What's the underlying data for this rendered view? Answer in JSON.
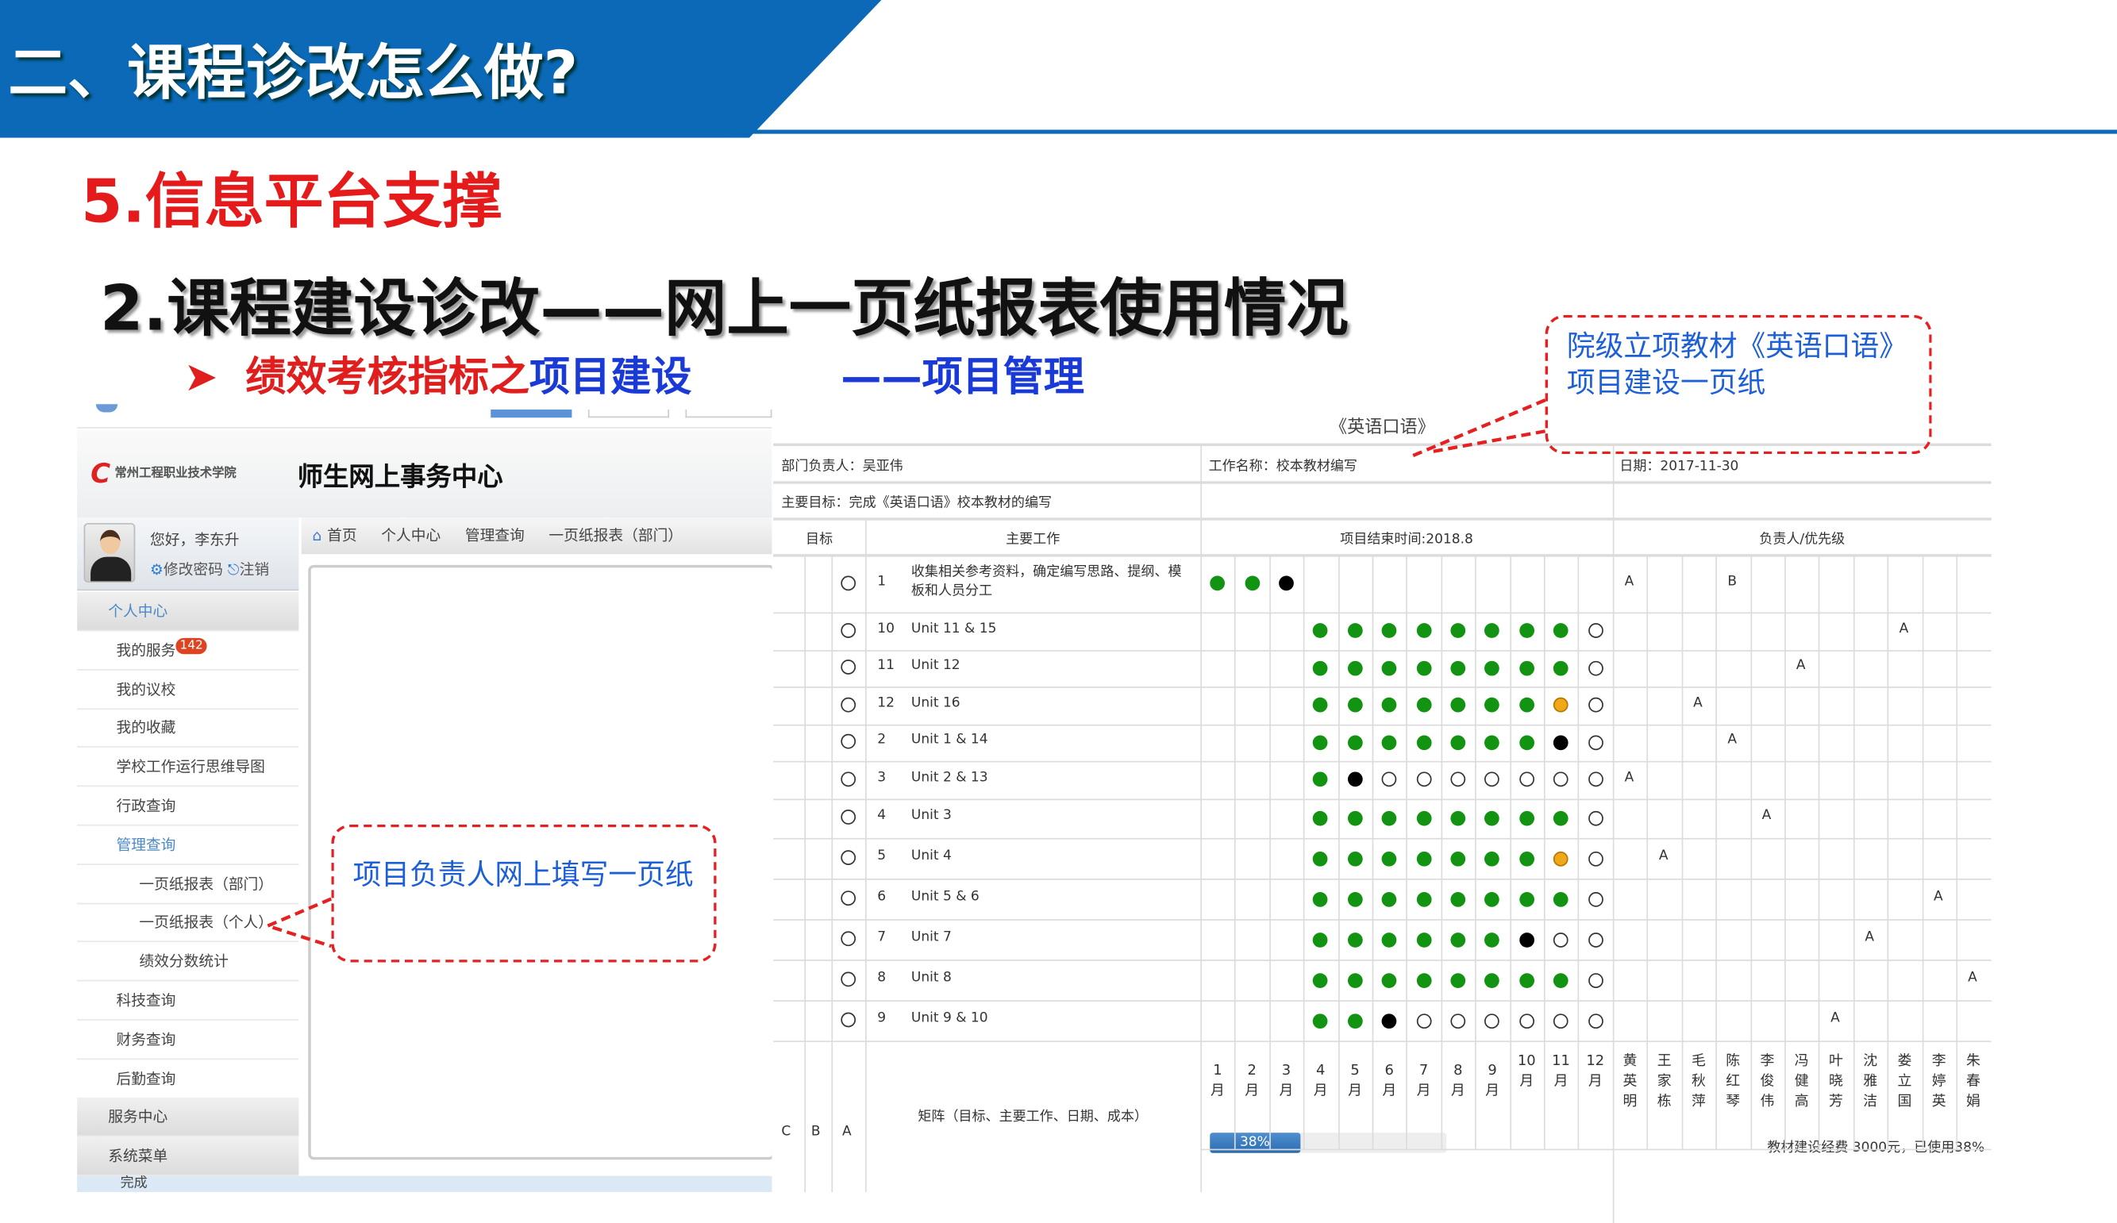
{
  "slide": {
    "banner_title": "二、课程诊改怎么做?",
    "section": "5.信息平台支撑",
    "heading": "2.课程建设诊改——网上一页纸报表使用情况",
    "sub_bullet": "➤",
    "sub_red": "绩效考核指标之",
    "sub_blue": "项目建设",
    "sub_right": "——项目管理",
    "callout_top": "院级立项教材《英语口语》项目建设一页纸",
    "callout_left": "项目负责人网上填写一页纸"
  },
  "portal": {
    "logo_text": "常州工程职业技术学院",
    "system_name": "师生网上事务中心",
    "greeting": "您好，李东升",
    "change_password": "修改密码",
    "logout": "注销",
    "breadcrumb": [
      "首页",
      "个人中心",
      "管理查询",
      "一页纸报表（部门）"
    ],
    "menu": [
      {
        "label": "个人中心",
        "type": "hdr",
        "active": true
      },
      {
        "label": "我的服务",
        "badge": "142"
      },
      {
        "label": "我的议校"
      },
      {
        "label": "我的收藏"
      },
      {
        "label": "学校工作运行思维导图"
      },
      {
        "label": "行政查询"
      },
      {
        "label": "管理查询",
        "active": true
      },
      {
        "label": "一页纸报表（部门）",
        "type": "sub"
      },
      {
        "label": "一页纸报表（个人）",
        "type": "sub"
      },
      {
        "label": "绩效分数统计",
        "type": "sub"
      },
      {
        "label": "科技查询"
      },
      {
        "label": "财务查询"
      },
      {
        "label": "后勤查询"
      },
      {
        "label": "服务中心",
        "type": "hdr"
      },
      {
        "label": "系统菜单",
        "type": "hdr"
      }
    ],
    "status": "完成"
  },
  "report": {
    "title": "《英语口语》",
    "dept_head": "部门负责人：吴亚伟",
    "work_name": "工作名称：校本教材编写",
    "date": "日期：2017-11-30",
    "main_goal": "主要目标：完成《英语口语》校本教材的编写",
    "col_target": "目标",
    "col_work": "主要工作",
    "col_end": "项目结束时间:2018.8",
    "col_owner": "负责人/优先级",
    "rows": [
      {
        "no": "1",
        "work": "收集相关参考资料，确定编写思路、提纲、模板和人员分工",
        "months": [
          "green",
          "green",
          "black",
          "",
          "",
          "",
          "",
          "",
          "",
          "",
          "",
          ""
        ],
        "owners": [
          "A",
          "",
          "",
          "B",
          "",
          "",
          "",
          "",
          "",
          "",
          ""
        ]
      },
      {
        "no": "10",
        "work": "Unit 11 & 15",
        "months": [
          "",
          "",
          "",
          "green",
          "green",
          "green",
          "green",
          "green",
          "green",
          "green",
          "green",
          "open"
        ],
        "owners": [
          "",
          "",
          "",
          "",
          "",
          "",
          "",
          "",
          "A",
          "",
          ""
        ]
      },
      {
        "no": "11",
        "work": "Unit 12",
        "months": [
          "",
          "",
          "",
          "green",
          "green",
          "green",
          "green",
          "green",
          "green",
          "green",
          "green",
          "open"
        ],
        "owners": [
          "",
          "",
          "",
          "",
          "",
          "A",
          "",
          "",
          "",
          "",
          ""
        ]
      },
      {
        "no": "12",
        "work": "Unit 16",
        "months": [
          "",
          "",
          "",
          "green",
          "green",
          "green",
          "green",
          "green",
          "green",
          "green",
          "orange",
          "open"
        ],
        "owners": [
          "",
          "",
          "A",
          "",
          "",
          "",
          "",
          "",
          "",
          "",
          ""
        ]
      },
      {
        "no": "2",
        "work": "Unit 1 & 14",
        "months": [
          "",
          "",
          "",
          "green",
          "green",
          "green",
          "green",
          "green",
          "green",
          "green",
          "black",
          "open"
        ],
        "owners": [
          "",
          "",
          "",
          "A",
          "",
          "",
          "",
          "",
          "",
          "",
          ""
        ]
      },
      {
        "no": "3",
        "work": "Unit 2 & 13",
        "months": [
          "",
          "",
          "",
          "green",
          "black",
          "open",
          "open",
          "open",
          "open",
          "open",
          "open",
          "open"
        ],
        "owners": [
          "A",
          "",
          "",
          "",
          "",
          "",
          "",
          "",
          "",
          "",
          ""
        ]
      },
      {
        "no": "4",
        "work": "Unit 3",
        "months": [
          "",
          "",
          "",
          "green",
          "green",
          "green",
          "green",
          "green",
          "green",
          "green",
          "green",
          "open"
        ],
        "owners": [
          "",
          "",
          "",
          "",
          "A",
          "",
          "",
          "",
          "",
          "",
          ""
        ]
      },
      {
        "no": "5",
        "work": "Unit 4",
        "months": [
          "",
          "",
          "",
          "green",
          "green",
          "green",
          "green",
          "green",
          "green",
          "green",
          "orange",
          "open"
        ],
        "owners": [
          "",
          "A",
          "",
          "",
          "",
          "",
          "",
          "",
          "",
          "",
          ""
        ]
      },
      {
        "no": "6",
        "work": "Unit 5 & 6",
        "months": [
          "",
          "",
          "",
          "green",
          "green",
          "green",
          "green",
          "green",
          "green",
          "green",
          "green",
          "open"
        ],
        "owners": [
          "",
          "",
          "",
          "",
          "",
          "",
          "",
          "",
          "",
          "A",
          ""
        ]
      },
      {
        "no": "7",
        "work": "Unit 7",
        "months": [
          "",
          "",
          "",
          "green",
          "green",
          "green",
          "green",
          "green",
          "green",
          "black",
          "open",
          "open"
        ],
        "owners": [
          "",
          "",
          "",
          "",
          "",
          "",
          "",
          "A",
          "",
          "",
          ""
        ]
      },
      {
        "no": "8",
        "work": "Unit 8",
        "months": [
          "",
          "",
          "",
          "green",
          "green",
          "green",
          "green",
          "green",
          "green",
          "green",
          "green",
          "open"
        ],
        "owners": [
          "",
          "",
          "",
          "",
          "",
          "",
          "",
          "",
          "",
          "",
          "A"
        ]
      },
      {
        "no": "9",
        "work": "Unit 9 & 10",
        "months": [
          "",
          "",
          "",
          "green",
          "green",
          "black",
          "open",
          "open",
          "open",
          "open",
          "open",
          "open"
        ],
        "owners": [
          "",
          "",
          "",
          "",
          "",
          "",
          "A",
          "",
          "",
          "",
          ""
        ]
      }
    ],
    "priority_labels": [
      "C",
      "B",
      "A"
    ],
    "matrix_label": "矩阵（目标、主要工作、日期、成本）",
    "month_labels": [
      "1月",
      "2月",
      "3月",
      "4月",
      "5月",
      "6月",
      "7月",
      "8月",
      "9月",
      "10月",
      "11月",
      "12月"
    ],
    "people": [
      "黄英明",
      "王家栋",
      "毛秋萍",
      "陈红琴",
      "李俊伟",
      "冯健高",
      "叶晓芳",
      "沈雅洁",
      "娄立国",
      "李婷英",
      "朱春娟"
    ],
    "progress_percent": 38,
    "progress_label": "38%",
    "budget_text": "教材建设经费 3000元，已使用38%"
  },
  "colors": {
    "banner": "#0b69b7",
    "red": "#e51b1b",
    "blue": "#1a3ad8",
    "green_dot": "#129412",
    "orange_dot": "#f0a818"
  }
}
